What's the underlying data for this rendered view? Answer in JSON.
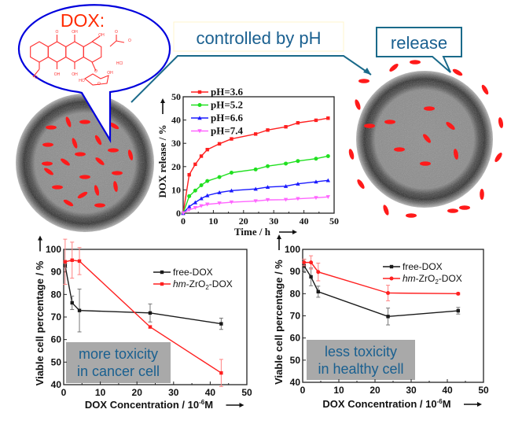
{
  "figure": {
    "bubble_title": "DOX:",
    "structure_labels": [
      "O",
      "OH",
      "OH",
      "O",
      "O",
      "OH",
      "OH",
      "O",
      "HCl",
      "OH",
      "HO",
      "O",
      "O"
    ],
    "controlled_label": "controlled by pH",
    "release_label": "release",
    "colors": {
      "particle": "#ff1a1a",
      "callout_blue": "#0000dd",
      "callout_teal": "#1a6a8a",
      "text_teal": "#1a6090",
      "annotation_bg": "#a9a9a9"
    }
  },
  "chart_data": [
    {
      "type": "line",
      "xlabel": "Time / h",
      "ylabel": "DOX release / %",
      "xlim": [
        0,
        50
      ],
      "ylim": [
        0,
        50
      ],
      "xticks": [
        "0",
        "10",
        "20",
        "30",
        "40",
        "50"
      ],
      "yticks": [
        "0",
        "10",
        "20",
        "30",
        "40",
        "50"
      ],
      "grid": false,
      "legend": "top-left",
      "x": [
        0,
        2,
        4,
        6,
        8,
        12,
        16,
        24,
        28,
        34,
        38,
        44,
        48
      ],
      "series": [
        {
          "name": "pH=3.6",
          "color": "#ff2020",
          "marker": "square",
          "values": [
            0,
            16.5,
            21,
            24.5,
            27.3,
            29.8,
            31.9,
            34,
            35.7,
            37.1,
            38.8,
            39.9,
            40.8
          ]
        },
        {
          "name": "pH=5.2",
          "color": "#20e020",
          "marker": "circle",
          "values": [
            0,
            7.3,
            9.7,
            12,
            13.8,
            15.5,
            17.4,
            18.8,
            20.2,
            21.3,
            22.4,
            23.4,
            24.5
          ]
        },
        {
          "name": "pH=6.6",
          "color": "#1a1aff",
          "marker": "triangle-up",
          "values": [
            0,
            2.8,
            4.6,
            6.3,
            7.6,
            8.9,
            9.7,
            10.4,
            11.2,
            11.6,
            12.6,
            13.5,
            14.1
          ]
        },
        {
          "name": "pH=7.4",
          "color": "#ff66ff",
          "marker": "triangle-down",
          "values": [
            0,
            1.4,
            2.3,
            3.1,
            3.8,
            4.3,
            4.7,
            5.2,
            5.7,
            5.8,
            6.2,
            6.6,
            7.0
          ]
        }
      ]
    },
    {
      "type": "line",
      "xlabel": {
        "main": "DOX Concentration / 10",
        "sup": "-6",
        "unit": "M"
      },
      "ylabel": "Viable cell percentage / %",
      "xlim": [
        0,
        50
      ],
      "ylim": [
        40,
        100
      ],
      "xticks": [
        "0",
        "10",
        "20",
        "30",
        "40",
        "50"
      ],
      "yticks": [
        "40",
        "50",
        "60",
        "70",
        "80",
        "90",
        "100"
      ],
      "grid": false,
      "legend": "top-right",
      "annotation": [
        "more toxicity",
        "in cancer cell"
      ],
      "x": [
        0.4,
        2.3,
        4.3,
        23.6,
        43
      ],
      "series": [
        {
          "name": "free-DOX",
          "color": "#1a1a1a",
          "marker": "square",
          "values": [
            92.8,
            76.3,
            72.9,
            71.8,
            67
          ],
          "errors": [
            1,
            3,
            9.5,
            4,
            2.5
          ]
        },
        {
          "name": "hm-ZrO2-DOX",
          "name_parts": {
            "italic": "hm",
            "rest": "-ZrO",
            "sub": "2",
            "tail": "-DOX"
          },
          "color": "#ff2020",
          "marker": "square",
          "values": [
            94.5,
            95.2,
            94.8,
            65.6,
            45.2
          ],
          "errors": [
            10,
            8,
            6,
            0.5,
            6
          ]
        }
      ]
    },
    {
      "type": "line",
      "xlabel": {
        "main": "DOX Concentration / 10",
        "sup": "-6",
        "unit": "M"
      },
      "ylabel": "Viable cell percentage / %",
      "xlim": [
        0,
        50
      ],
      "ylim": [
        40,
        100
      ],
      "xticks": [
        "0",
        "10",
        "20",
        "30",
        "40",
        "50"
      ],
      "yticks": [
        "40",
        "50",
        "60",
        "70",
        "80",
        "90",
        "100"
      ],
      "grid": false,
      "legend": "top-right",
      "annotation": [
        "less toxicity",
        "in healthy cell"
      ],
      "x": [
        0.4,
        2.3,
        4.3,
        23.6,
        43
      ],
      "series": [
        {
          "name": "free-DOX",
          "color": "#1a1a1a",
          "marker": "square",
          "values": [
            92.5,
            87.6,
            80.9,
            69.7,
            72.3
          ],
          "errors": [
            3,
            4,
            2.5,
            3.8,
            1.5
          ]
        },
        {
          "name": "hm-ZrO2-DOX",
          "name_parts": {
            "italic": "hm",
            "rest": "-ZrO",
            "sub": "2",
            "tail": "-DOX"
          },
          "color": "#ff2020",
          "marker": "circle",
          "values": [
            94.1,
            94.1,
            89.8,
            80.3,
            80
          ],
          "errors": [
            1.5,
            3,
            4,
            3.5,
            0.5
          ]
        }
      ]
    }
  ]
}
